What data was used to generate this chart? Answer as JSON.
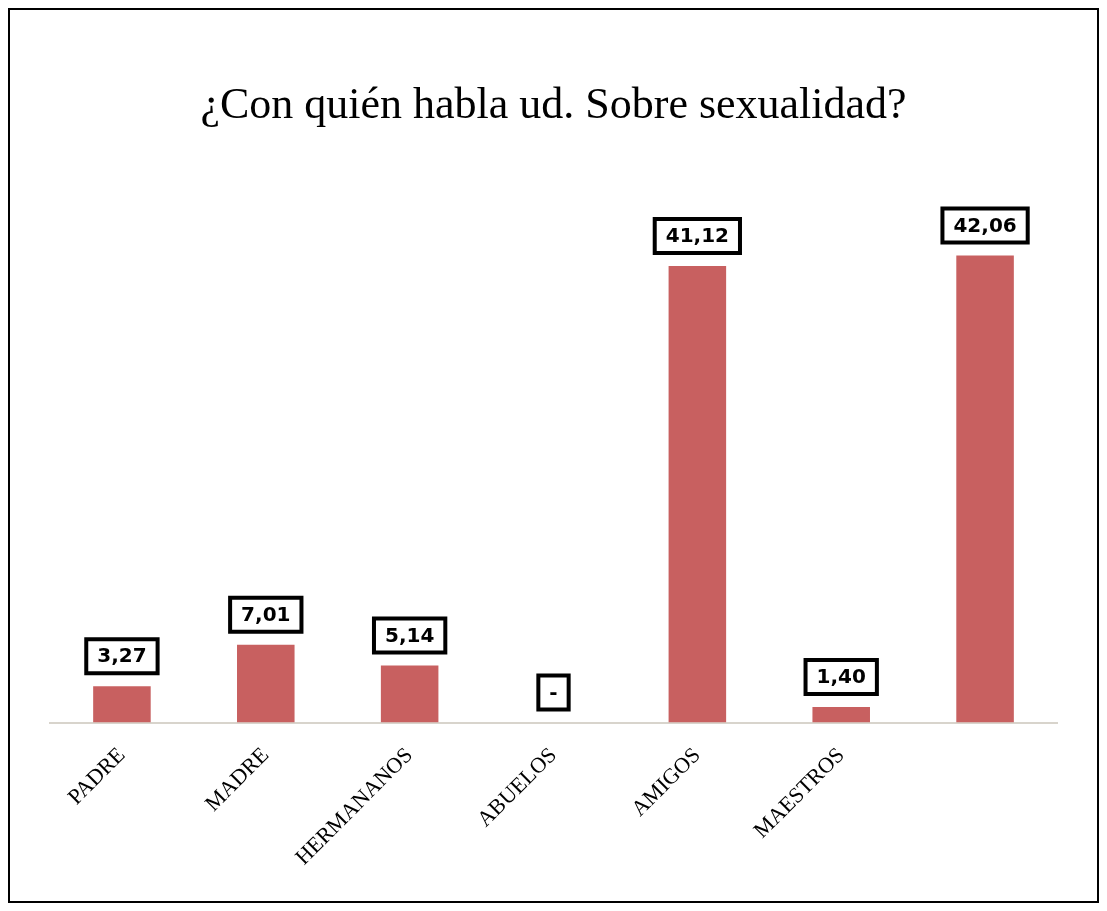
{
  "chart_data": {
    "type": "bar",
    "title": "¿Con quién habla ud. Sobre sexualidad?",
    "categories": [
      "PADRE",
      "MADRE",
      "HERMANANOS",
      "ABUELOS",
      "AMIGOS",
      "MAESTROS",
      null
    ],
    "values": [
      3.27,
      7.01,
      5.14,
      0,
      41.12,
      1.4,
      42.06
    ],
    "value_labels": [
      "3,27",
      "7,01",
      "5,14",
      "-",
      "41,12",
      "1,40",
      "42,06"
    ],
    "color": "#c86060",
    "grid": false,
    "legend": false
  }
}
